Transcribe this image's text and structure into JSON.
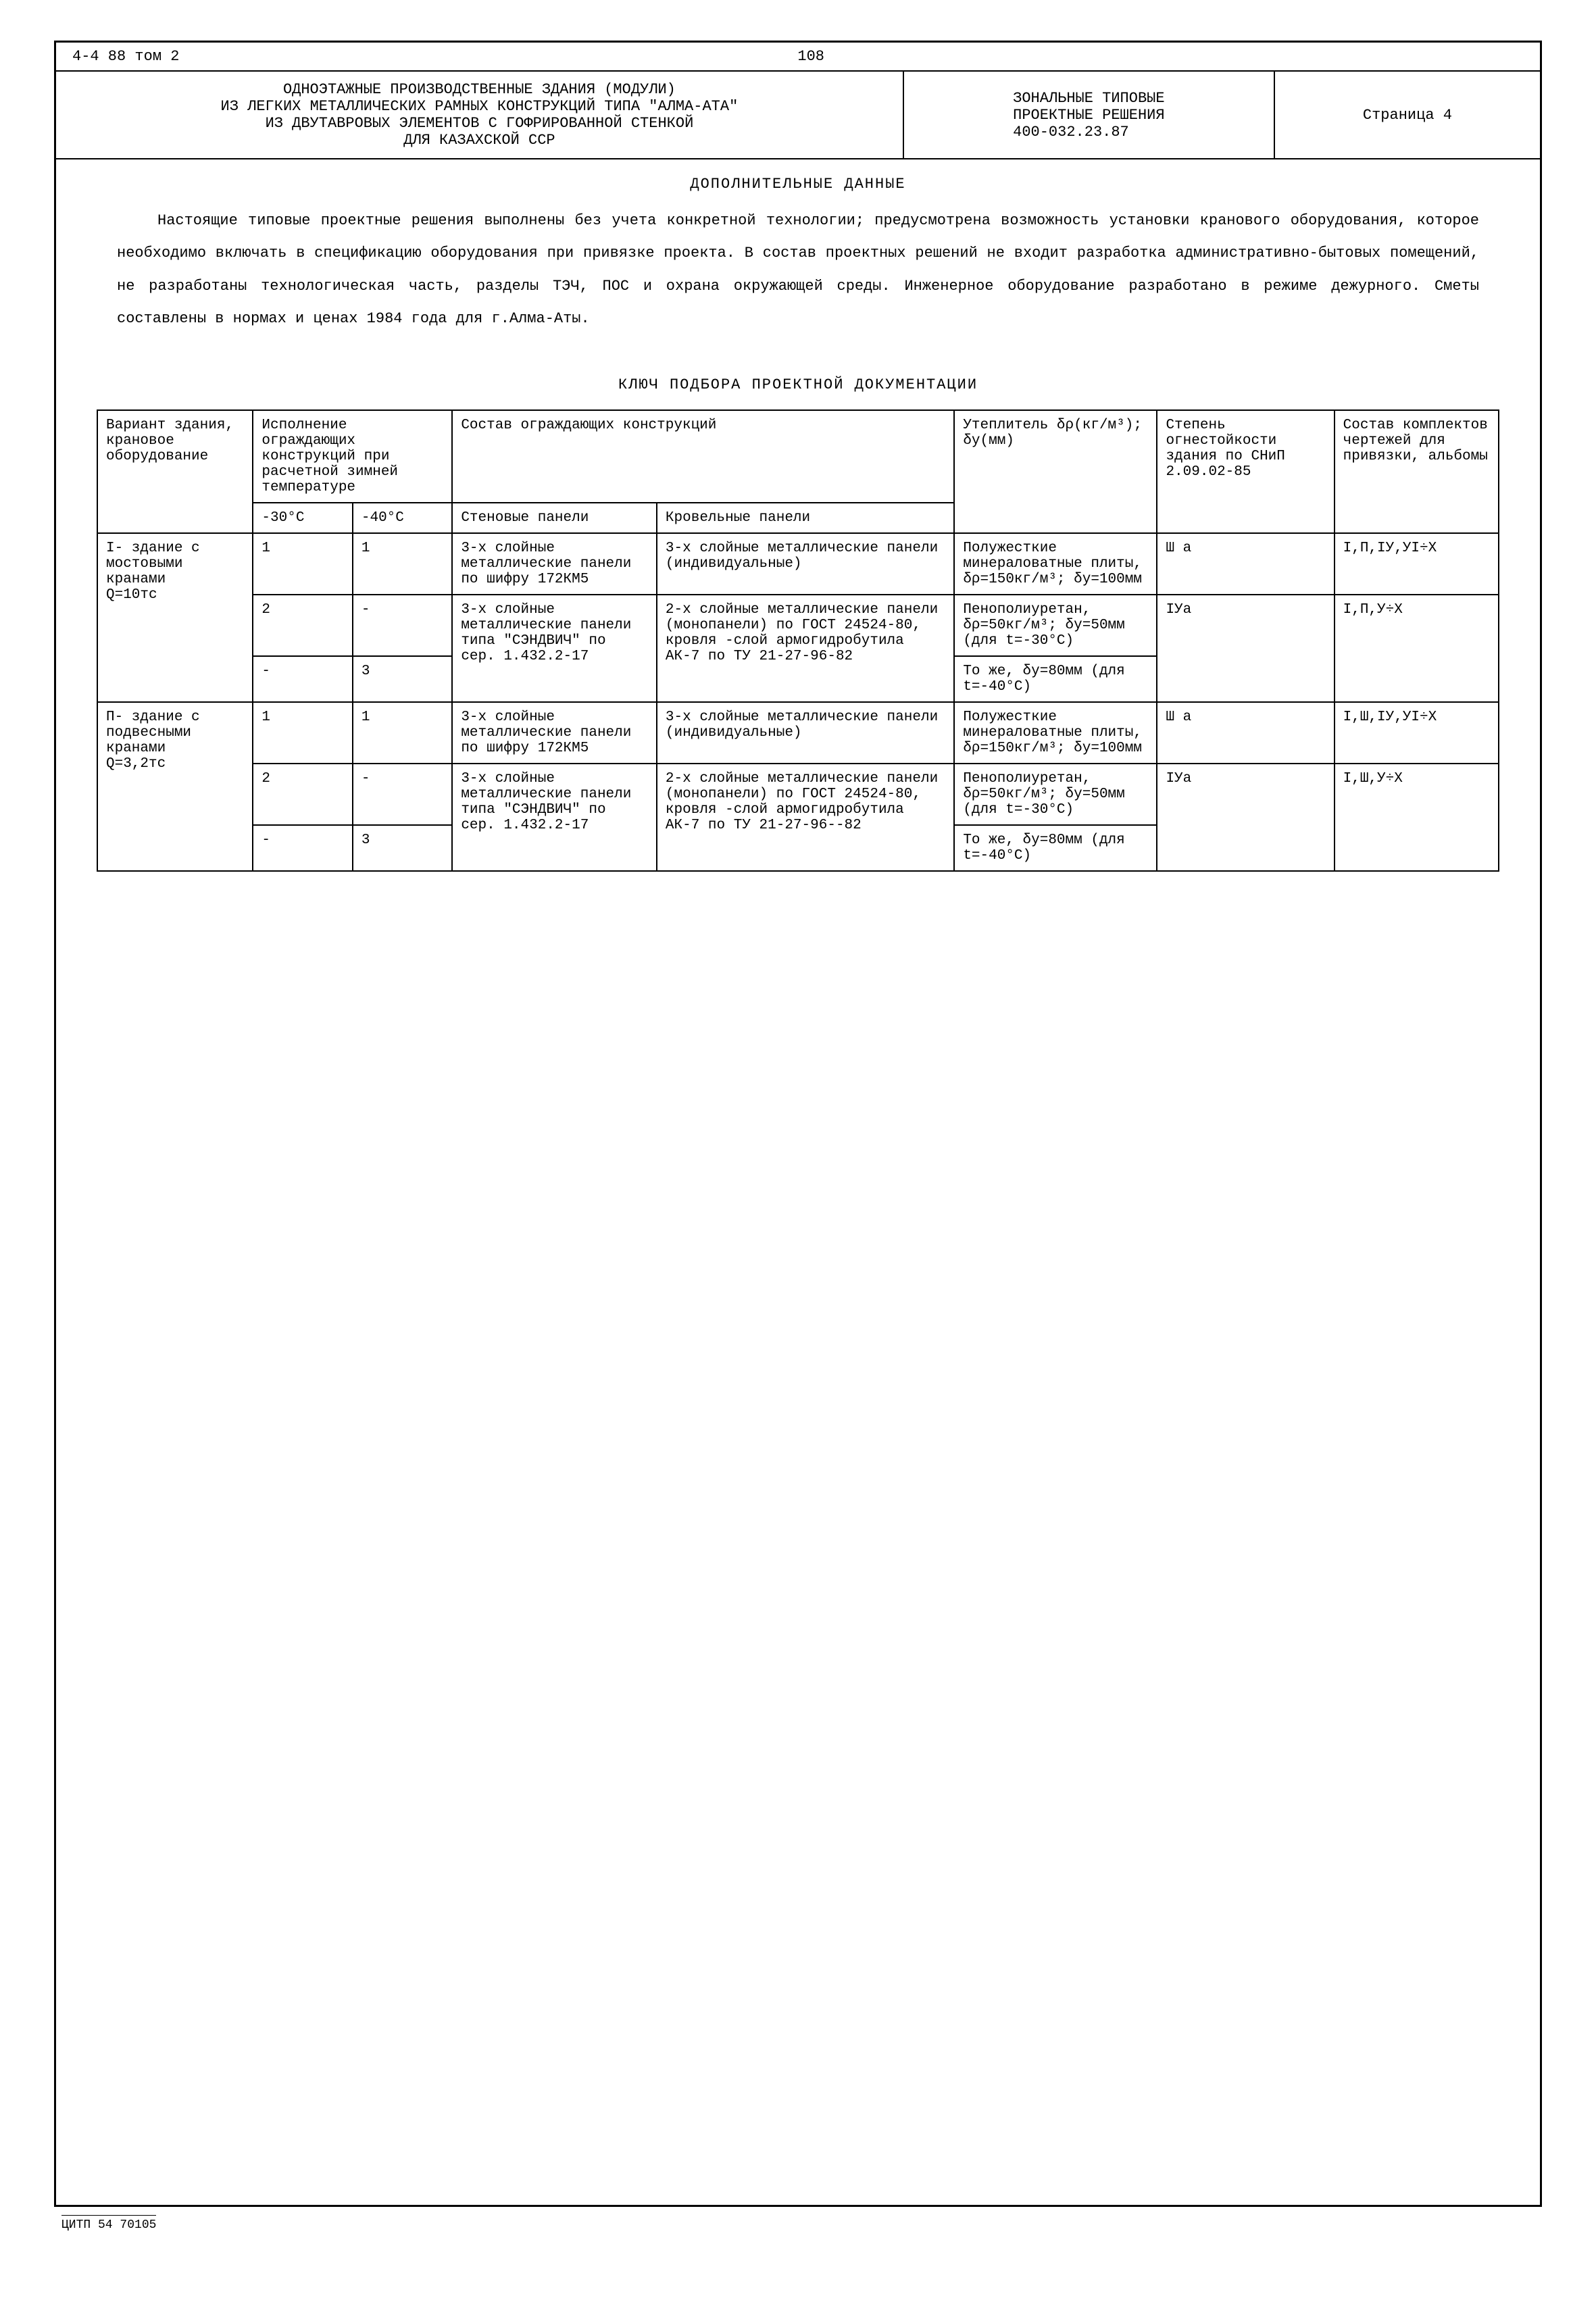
{
  "meta": {
    "top_left": "4-4 88 том 2",
    "page_number": "108",
    "footer": "ЦИТП 54 70105"
  },
  "header": {
    "title_lines": "ОДНОЭТАЖНЫЕ ПРОИЗВОДСТВЕННЫЕ ЗДАНИЯ (МОДУЛИ)\nИЗ ЛЕГКИХ МЕТАЛЛИЧЕСКИХ РАМНЫХ КОНСТРУКЦИЙ ТИПА \"АЛМА-АТА\"\nИЗ ДВУТАВРОВЫХ ЭЛЕМЕНТОВ С ГОФРИРОВАННОЙ СТЕНКОЙ\nДЛЯ КАЗАХСКОЙ ССР",
    "series": "ЗОНАЛЬНЫЕ ТИПОВЫЕ\nПРОЕКТНЫЕ РЕШЕНИЯ\n400-032.23.87",
    "page_label": "Страница 4"
  },
  "section1_title": "ДОПОЛНИТЕЛЬНЫЕ ДАННЫЕ",
  "body_text": "Настоящие типовые проектные решения выполнены без учета конкретной технологии; предусмотрена возможность установки кранового оборудования, которое необходимо включать в спецификацию оборудования при привязке проекта. В состав проектных решений не входит разработка административно-бытовых помещений, не разработаны технологическая часть, разделы ТЭЧ, ПОС и охрана окружающей среды. Инженерное оборудование разработано в режиме дежурного. Сметы составлены в нормах и ценах 1984 года для г.Алма-Аты.",
  "section2_title": "КЛЮЧ ПОДБОРА ПРОЕКТНОЙ ДОКУМЕНТАЦИИ",
  "table": {
    "head": {
      "col1": "Вариант здания, крановое оборудование",
      "col2": "Исполнение ограждающих конструкций при расчетной зимней температуре",
      "col2a": "-30°C",
      "col2b": "-40°C",
      "col3": "Состав ограждающих конструкций",
      "col3a": "Стеновые панели",
      "col3b": "Кровельные панели",
      "col4": "Утеплитель δρ(кг/м³); δу(мм)",
      "col5": "Степень огнестойкости здания по СНиП 2.09.02-85",
      "col6": "Состав комплектов чертежей для привязки, альбомы"
    },
    "rows": [
      {
        "variant": "I- здание с мостовыми кранами\n   Q=10тс",
        "sub": [
          {
            "t30": "1",
            "t40": "1",
            "wall": "3-х слойные металлические панели по шифру 172КМ5",
            "roof": "3-х слойные металлические панели (индивидуальные)",
            "insul": "Полужесткие минераловатные плиты, δρ=150кг/м³; δу=100мм",
            "fire": "Ш а",
            "albums": "I,П,IУ,УI÷Х"
          },
          {
            "t30": "2",
            "t40": "-",
            "wall": "3-х слойные металлические панели типа \"СЭНДВИЧ\" по сер. 1.432.2-17",
            "roof": "2-х слойные металлические панели (монопанели) по ГОСТ 24524-80, кровля -слой армогидробутила АК-7 по ТУ 21-27-96-82",
            "insul": "Пенополиуретан, δρ=50кг/м³; δу=50мм (для t=-30°C)",
            "fire": "IУа",
            "albums": "I,П,У÷Х"
          },
          {
            "t30": "-",
            "t40": "3",
            "wall": "",
            "roof": "",
            "insul": "То же, δу=80мм (для t=-40°C)",
            "fire": "",
            "albums": ""
          }
        ]
      },
      {
        "variant": "П- здание с подвесными кранами\n   Q=3,2тс",
        "sub": [
          {
            "t30": "1",
            "t40": "1",
            "wall": "3-х слойные металлические панели по шифру 172КМ5",
            "roof": "3-х слойные металлические панели (индивидуальные)",
            "insul": "Полужесткие минераловатные плиты, δρ=150кг/м³; δу=100мм",
            "fire": "Ш а",
            "albums": "I,Ш,IУ,УI÷Х"
          },
          {
            "t30": "2",
            "t40": "-",
            "wall": "3-х слойные металлические панели типа \"СЭНДВИЧ\" по сер. 1.432.2-17",
            "roof": "2-х слойные металлические панели (монопанели) по ГОСТ 24524-80, кровля -слой армогидробутила АК-7 по ТУ 21-27-96--82",
            "insul": "Пенополиуретан, δρ=50кг/м³; δу=50мм (для t=-30°C)",
            "fire": "IУа",
            "albums": "I,Ш,У÷Х"
          },
          {
            "t30": "-",
            "t40": "3",
            "wall": "",
            "roof": "",
            "insul": "То же, δу=80мм (для t=-40°C)",
            "fire": "",
            "albums": ""
          }
        ]
      }
    ]
  }
}
